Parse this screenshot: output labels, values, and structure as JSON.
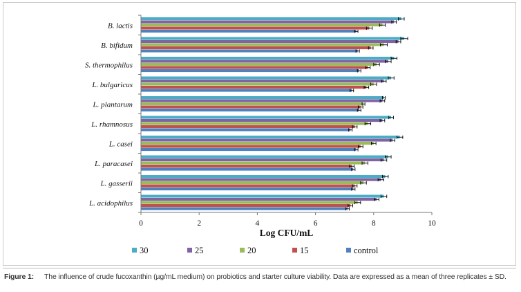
{
  "chart_data": {
    "type": "bar",
    "orientation": "horizontal",
    "title": "",
    "xlabel": "Log CFU/mL",
    "ylabel": "",
    "xlim": [
      0,
      10
    ],
    "xticks": [
      "0",
      "2",
      "4",
      "6",
      "8",
      "10"
    ],
    "grid": false,
    "legend_position": "bottom",
    "categories": [
      "B. lactis",
      "B. bifidum",
      "S. thermophilus",
      "L. bulgaricus",
      "L. plantarum",
      "L. rhamnosus",
      "L. casei",
      "L. paracasei",
      "L. gasserii",
      "L. acidophilus"
    ],
    "series": [
      {
        "name": "30",
        "color": "#4bacc6",
        "values": [
          8.95,
          9.05,
          8.7,
          8.6,
          8.35,
          8.6,
          8.9,
          8.5,
          8.4,
          8.35
        ],
        "errors": [
          0.1,
          0.12,
          0.1,
          0.1,
          0.05,
          0.08,
          0.1,
          0.1,
          0.1,
          0.1
        ]
      },
      {
        "name": "25",
        "color": "#8064a2",
        "values": [
          8.7,
          8.85,
          8.5,
          8.35,
          8.3,
          8.3,
          8.65,
          8.35,
          8.25,
          8.1
        ],
        "errors": [
          0.08,
          0.08,
          0.1,
          0.08,
          0.08,
          0.08,
          0.08,
          0.1,
          0.1,
          0.08
        ]
      },
      {
        "name": "20",
        "color": "#9bbb59",
        "values": [
          8.3,
          8.35,
          8.1,
          8.0,
          7.65,
          7.8,
          8.0,
          7.7,
          7.65,
          7.45
        ],
        "errors": [
          0.1,
          0.12,
          0.1,
          0.1,
          0.05,
          0.1,
          0.08,
          0.1,
          0.1,
          0.1
        ]
      },
      {
        "name": "15",
        "color": "#c0504d",
        "values": [
          7.85,
          7.9,
          7.8,
          7.75,
          7.55,
          7.35,
          7.55,
          7.25,
          7.35,
          7.2
        ],
        "errors": [
          0.1,
          0.08,
          0.08,
          0.08,
          0.08,
          0.08,
          0.08,
          0.08,
          0.08,
          0.08
        ]
      },
      {
        "name": "control",
        "color": "#4f81bd",
        "values": [
          7.4,
          7.45,
          7.5,
          7.25,
          7.5,
          7.2,
          7.4,
          7.3,
          7.3,
          7.1
        ],
        "errors": [
          0.06,
          0.06,
          0.06,
          0.06,
          0.06,
          0.06,
          0.06,
          0.06,
          0.06,
          0.06
        ]
      }
    ]
  },
  "caption": {
    "label": "Figure 1:",
    "text": "The influence of crude fucoxanthin (µg/mL medium) on probiotics and starter culture viability. Data are expressed as a mean of three replicates ± SD."
  }
}
